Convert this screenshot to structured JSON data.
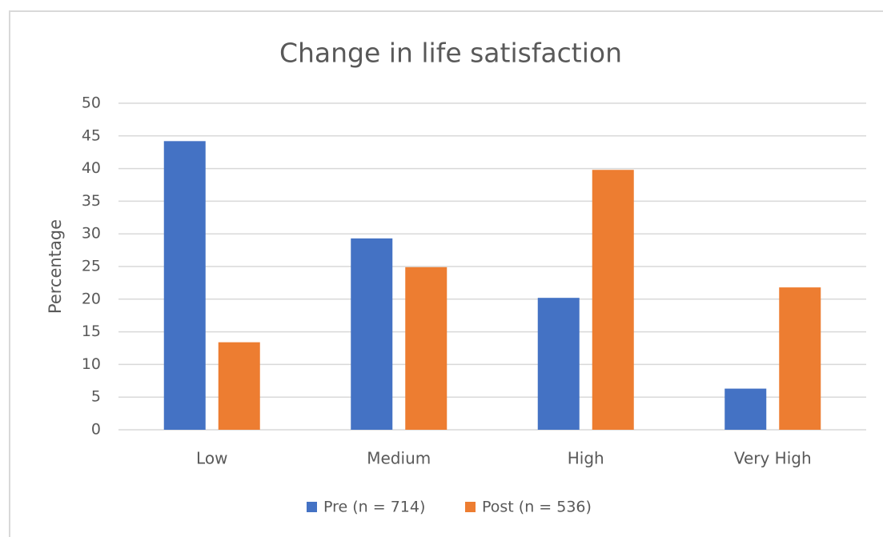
{
  "chart_data": {
    "type": "bar",
    "title": "Change in life satisfaction",
    "y_label": "Percentage",
    "categories": [
      "Low",
      "Medium",
      "High",
      "Very High"
    ],
    "series": [
      {
        "name": "Pre (n = 714)",
        "color": "#4472c4",
        "values": [
          44.2,
          29.3,
          20.2,
          6.3
        ]
      },
      {
        "name": "Post (n = 536)",
        "color": "#ed7d31",
        "values": [
          13.4,
          24.9,
          39.8,
          21.8
        ]
      }
    ],
    "ylim": [
      0,
      50
    ],
    "yticks": [
      0,
      5,
      10,
      15,
      20,
      25,
      30,
      35,
      40,
      45,
      50
    ],
    "grid": true,
    "legend": "bottom"
  }
}
